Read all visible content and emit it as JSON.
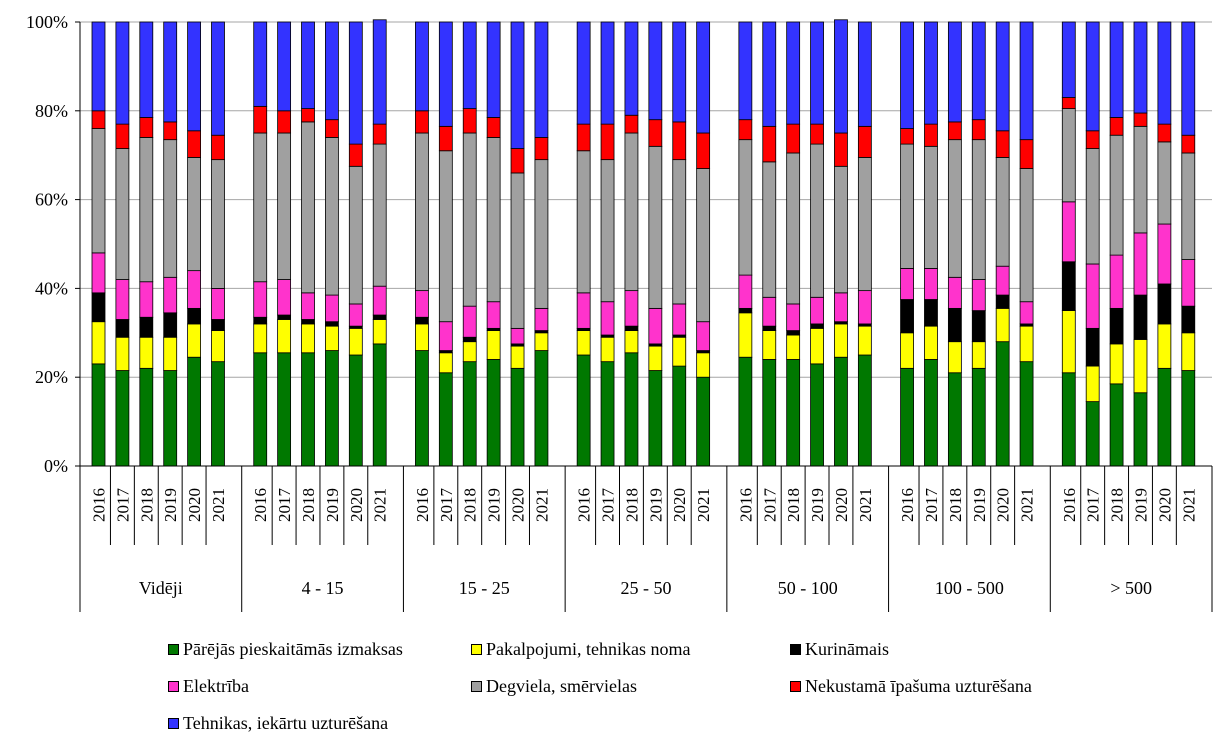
{
  "chart_data": {
    "type": "bar",
    "stacked": true,
    "percent": true,
    "ylim": [
      0,
      100
    ],
    "y_ticks": [
      "0%",
      "20%",
      "40%",
      "60%",
      "80%",
      "100%"
    ],
    "grid": true,
    "legend_position": "bottom",
    "years": [
      "2016",
      "2017",
      "2018",
      "2019",
      "2020",
      "2021"
    ],
    "groups": [
      "Vidēji",
      "4 - 15",
      "15 - 25",
      "25 - 50",
      "50 - 100",
      "100 - 500",
      "> 500"
    ],
    "series": [
      {
        "name": "Pārējās pieskaitāmās izmaksas",
        "color": "#007800",
        "values": [
          [
            23,
            21.5,
            22,
            21.5,
            24.5,
            23.5
          ],
          [
            25.5,
            25.5,
            25.5,
            26,
            25,
            27.5
          ],
          [
            26,
            21,
            23.5,
            24,
            22,
            26
          ],
          [
            25,
            23.5,
            25.5,
            21.5,
            22.5,
            20
          ],
          [
            24.5,
            24,
            24,
            23,
            24.5,
            25
          ],
          [
            22,
            24,
            21,
            22,
            28,
            23.5
          ],
          [
            21,
            14.5,
            18.5,
            16.5,
            22,
            21.5
          ]
        ]
      },
      {
        "name": "Pakalpojumi, tehnikas noma",
        "color": "#ffff00",
        "values": [
          [
            9.5,
            7.5,
            7,
            7.5,
            7.5,
            7
          ],
          [
            6.5,
            7.5,
            6.5,
            5.5,
            6,
            5.5
          ],
          [
            6,
            4.5,
            4.5,
            6.5,
            5,
            4
          ],
          [
            5.5,
            5.5,
            5,
            5.5,
            6.5,
            5.5
          ],
          [
            10,
            6.5,
            5.5,
            8,
            7.5,
            6.5
          ],
          [
            8,
            7.5,
            7,
            6,
            7.5,
            8
          ],
          [
            14,
            8,
            9,
            12,
            10,
            8.5
          ]
        ]
      },
      {
        "name": "Kurināmais",
        "color": "#000000",
        "values": [
          [
            6.5,
            4,
            4.5,
            5.5,
            3.5,
            2.5
          ],
          [
            1.5,
            1,
            1,
            1,
            0.5,
            1
          ],
          [
            1.5,
            0.5,
            1,
            0.5,
            0.5,
            0.5
          ],
          [
            0.5,
            0.5,
            1,
            0.5,
            0.5,
            0.5
          ],
          [
            1,
            1,
            1,
            1,
            0.5,
            0.5
          ],
          [
            7.5,
            6,
            7.5,
            7,
            3,
            0.5
          ],
          [
            11,
            8.5,
            8,
            10,
            9,
            6
          ]
        ]
      },
      {
        "name": "Elektrība",
        "color": "#ff33cc",
        "values": [
          [
            9,
            9,
            8,
            8,
            8.5,
            7
          ],
          [
            8,
            8,
            6,
            6,
            5,
            6.5
          ],
          [
            6,
            6.5,
            7,
            6,
            3.5,
            5
          ],
          [
            8,
            7.5,
            8,
            8,
            7,
            6.5
          ],
          [
            7.5,
            6.5,
            6,
            6,
            6.5,
            7.5
          ],
          [
            7,
            7,
            7,
            7,
            6.5,
            5
          ],
          [
            13.5,
            14.5,
            12,
            14,
            13.5,
            10.5
          ]
        ]
      },
      {
        "name": "Degviela, smērvielas",
        "color": "#a0a0a0",
        "values": [
          [
            28,
            29.5,
            32.5,
            31,
            25.5,
            29
          ],
          [
            33.5,
            33,
            38.5,
            35.5,
            31,
            32
          ],
          [
            35.5,
            38.5,
            39,
            37,
            35,
            33.5
          ],
          [
            32,
            32,
            35.5,
            36.5,
            32.5,
            34.5
          ],
          [
            30.5,
            30.5,
            34,
            34.5,
            28.5,
            30
          ],
          [
            28,
            27.5,
            31,
            31.5,
            24.5,
            30
          ],
          [
            21,
            26,
            27,
            24,
            18.5,
            24
          ]
        ]
      },
      {
        "name": "Nekustamā īpašuma uzturēšana",
        "color": "#ff0000",
        "values": [
          [
            4,
            5.5,
            4.5,
            4,
            6,
            5.5
          ],
          [
            6,
            5,
            3,
            4,
            5,
            4.5
          ],
          [
            5,
            5.5,
            5.5,
            4.5,
            5.5,
            5
          ],
          [
            6,
            8,
            4,
            6,
            8.5,
            8
          ],
          [
            4.5,
            8,
            6.5,
            4.5,
            7.5,
            7
          ],
          [
            3.5,
            5,
            4,
            4.5,
            6,
            6.5
          ],
          [
            2.5,
            4,
            4,
            3,
            4,
            4
          ]
        ]
      },
      {
        "name": "Tehnikas, iekārtu uzturēšana",
        "color": "#3333ff",
        "values": [
          [
            20,
            23,
            21.5,
            22.5,
            24.5,
            25.5
          ],
          [
            19,
            20,
            19.5,
            22,
            27.5,
            23.5
          ],
          [
            20,
            23.5,
            19.5,
            21.5,
            28.5,
            26
          ],
          [
            23,
            23,
            21,
            22,
            22.5,
            25
          ],
          [
            22,
            23.5,
            23,
            23,
            25.5,
            23.5
          ],
          [
            24,
            23,
            22.5,
            22,
            24.5,
            26.5
          ],
          [
            17,
            24.5,
            21.5,
            20.5,
            23,
            25.5
          ]
        ]
      }
    ]
  }
}
